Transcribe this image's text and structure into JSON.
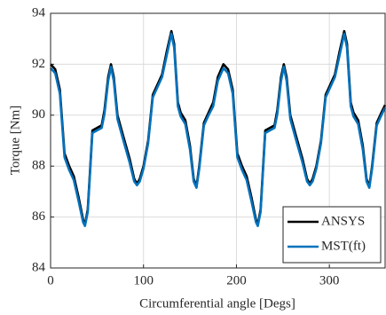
{
  "chart_data": {
    "type": "line",
    "x_label": "Circumferential angle [Degs]",
    "y_label": "Torque [Nm]",
    "x": [
      0,
      5,
      10,
      15,
      20,
      25,
      30,
      35,
      37,
      40,
      45,
      50,
      55,
      58,
      62,
      65,
      68,
      72,
      78,
      85,
      90,
      93,
      96,
      100,
      105,
      110,
      115,
      120,
      125,
      130,
      133,
      137,
      140,
      145,
      150,
      154,
      157,
      160,
      165,
      170,
      175,
      180,
      186,
      191,
      196,
      201,
      206,
      211,
      216,
      221,
      223,
      226,
      231,
      236,
      241,
      244,
      248,
      251,
      254,
      258,
      264,
      271,
      276,
      279,
      282,
      286,
      291,
      296,
      301,
      306,
      311,
      316,
      319,
      323,
      326,
      331,
      336,
      340,
      343,
      346,
      351,
      356,
      360
    ],
    "series": [
      {
        "name": "ANSYS",
        "color": "#000000",
        "values": [
          92.0,
          91.8,
          91.0,
          88.5,
          88.0,
          87.6,
          86.8,
          85.9,
          85.7,
          86.3,
          89.4,
          89.5,
          89.6,
          90.2,
          91.5,
          92.0,
          91.5,
          90.0,
          89.2,
          88.3,
          87.5,
          87.3,
          87.5,
          88.0,
          89.0,
          90.8,
          91.2,
          91.6,
          92.5,
          93.3,
          92.8,
          90.5,
          90.1,
          89.8,
          88.8,
          87.5,
          87.2,
          88.0,
          89.7,
          90.1,
          90.5,
          91.5,
          92.0,
          91.8,
          91.0,
          88.5,
          88.0,
          87.6,
          86.8,
          85.9,
          85.7,
          86.3,
          89.4,
          89.5,
          89.6,
          90.2,
          91.5,
          92.0,
          91.5,
          90.0,
          89.2,
          88.3,
          87.5,
          87.3,
          87.5,
          88.0,
          89.0,
          90.8,
          91.2,
          91.6,
          92.5,
          93.3,
          92.8,
          90.5,
          90.1,
          89.8,
          88.8,
          87.5,
          87.2,
          88.0,
          89.7,
          90.1,
          90.4
        ]
      },
      {
        "name": "MST(ft)",
        "color": "#0072bd",
        "values": [
          91.85,
          91.65,
          90.85,
          88.35,
          87.85,
          87.45,
          86.65,
          85.8,
          85.65,
          86.2,
          89.3,
          89.4,
          89.5,
          90.05,
          91.35,
          91.9,
          91.35,
          89.85,
          89.05,
          88.15,
          87.4,
          87.25,
          87.4,
          87.9,
          88.9,
          90.7,
          91.1,
          91.5,
          92.35,
          93.2,
          92.65,
          90.35,
          89.95,
          89.65,
          88.65,
          87.4,
          87.15,
          87.9,
          89.6,
          90.0,
          90.35,
          91.35,
          91.85,
          91.65,
          90.85,
          88.35,
          87.85,
          87.45,
          86.65,
          85.8,
          85.65,
          86.2,
          89.3,
          89.4,
          89.5,
          90.05,
          91.35,
          91.9,
          91.35,
          89.85,
          89.05,
          88.15,
          87.4,
          87.25,
          87.4,
          87.9,
          88.9,
          90.7,
          91.1,
          91.5,
          92.35,
          93.2,
          92.65,
          90.35,
          89.95,
          89.65,
          88.65,
          87.4,
          87.15,
          87.9,
          89.6,
          90.0,
          90.3
        ]
      }
    ],
    "xlim": [
      0,
      360
    ],
    "xticks": [
      0,
      100,
      200,
      300
    ],
    "ylim": [
      84,
      94
    ],
    "yticks": [
      84,
      86,
      88,
      90,
      92,
      94
    ],
    "grid": true,
    "legend": "lower right"
  }
}
